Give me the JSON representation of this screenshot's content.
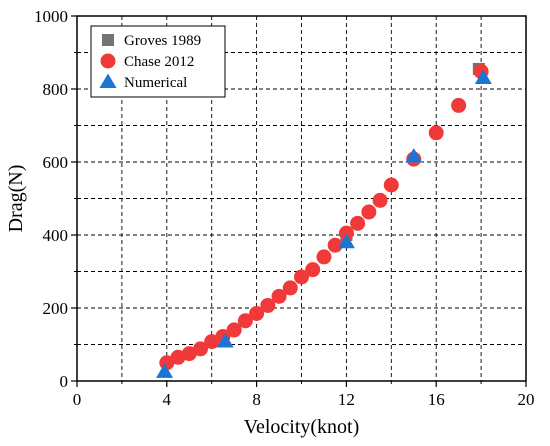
{
  "chart_data": {
    "type": "scatter",
    "xlabel": "Velocity(knot)",
    "ylabel": "Drag(N)",
    "xlim": [
      0,
      20
    ],
    "ylim": [
      0,
      1000
    ],
    "xticks": [
      0,
      4,
      8,
      12,
      16,
      20
    ],
    "yticks": [
      0,
      200,
      400,
      600,
      800,
      1000
    ],
    "x_minor_ticks": [
      2,
      6,
      10,
      14,
      18
    ],
    "y_minor_ticks": [
      100,
      300,
      500,
      700,
      900
    ],
    "grid": true,
    "grid_style": "dashed",
    "legend_position": "top-left",
    "series": [
      {
        "name": "Groves 1989",
        "marker": "square",
        "color": "#737373",
        "points": [
          [
            12.0,
            400
          ],
          [
            17.9,
            855
          ]
        ]
      },
      {
        "name": "Chase 2012",
        "marker": "circle",
        "color": "#f03a3a",
        "points": [
          [
            4.0,
            50
          ],
          [
            4.5,
            65
          ],
          [
            5.0,
            75
          ],
          [
            5.5,
            88
          ],
          [
            6.0,
            108
          ],
          [
            6.5,
            122
          ],
          [
            7.0,
            140
          ],
          [
            7.5,
            165
          ],
          [
            8.0,
            185
          ],
          [
            8.5,
            207
          ],
          [
            9.0,
            232
          ],
          [
            9.5,
            255
          ],
          [
            10.0,
            285
          ],
          [
            10.5,
            305
          ],
          [
            11.0,
            340
          ],
          [
            11.5,
            372
          ],
          [
            12.0,
            405
          ],
          [
            12.5,
            432
          ],
          [
            13.0,
            463
          ],
          [
            13.5,
            495
          ],
          [
            14.0,
            537
          ],
          [
            15.0,
            608
          ],
          [
            16.0,
            680
          ],
          [
            17.0,
            755
          ],
          [
            18.0,
            848
          ]
        ]
      },
      {
        "name": "Numerical",
        "marker": "triangle",
        "color": "#1c74d4",
        "points": [
          [
            3.9,
            25
          ],
          [
            6.6,
            108
          ],
          [
            12.0,
            380
          ],
          [
            15.0,
            615
          ],
          [
            18.1,
            830
          ]
        ]
      }
    ]
  }
}
